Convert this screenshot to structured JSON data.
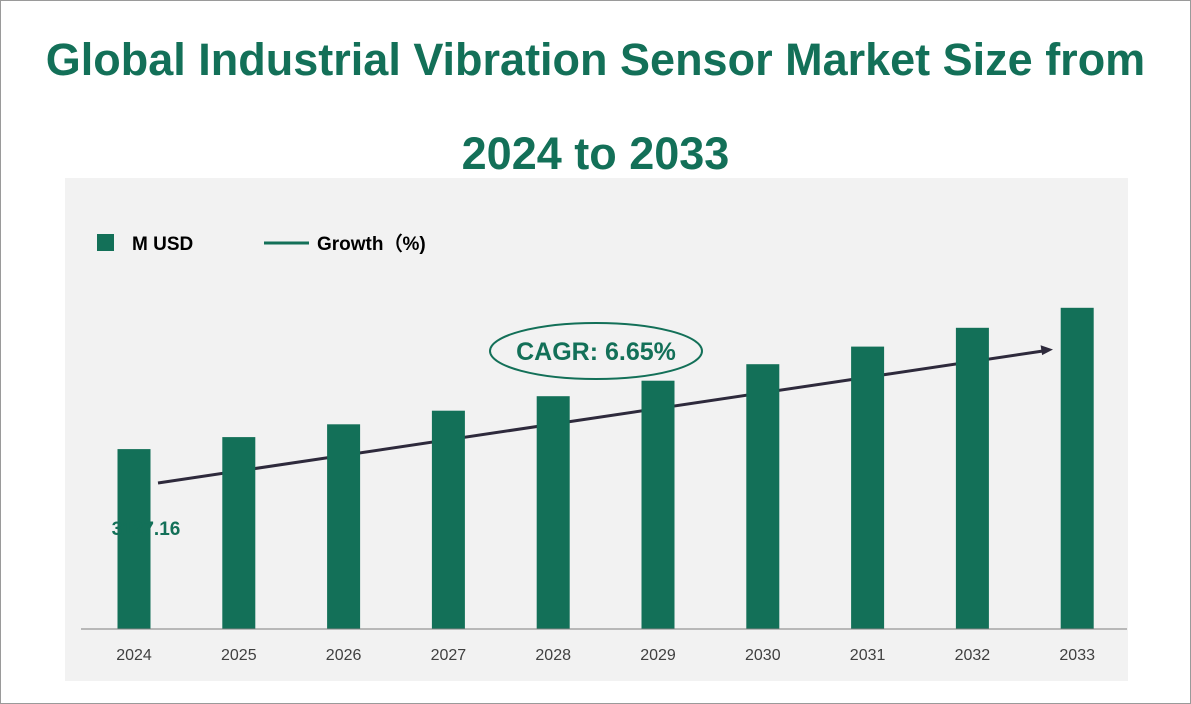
{
  "title_line1": "Global Industrial Vibration Sensor Market Size from",
  "title_line2": "2024 to 2033",
  "colors": {
    "bar": "#137058",
    "title": "#137058",
    "arrow": "#2e2a3c",
    "panel_bg": "#f2f2f2",
    "axis_text": "#404040"
  },
  "legend": {
    "bar_label": "M USD",
    "line_label": "Growth（%)"
  },
  "cagr_label": "CAGR: 6.65%",
  "first_value_label": "3127.16",
  "chart_data": {
    "type": "bar",
    "title": "Global Industrial Vibration Sensor Market Size from 2024 to 2033",
    "categories": [
      "2024",
      "2025",
      "2026",
      "2027",
      "2028",
      "2029",
      "2030",
      "2031",
      "2032",
      "2033"
    ],
    "series": [
      {
        "name": "M USD",
        "values": [
          3127.16,
          3335.1,
          3556.9,
          3793.5,
          4045.8,
          4314.8,
          4601.7,
          4907.8,
          5234.1,
          5582.2
        ]
      }
    ],
    "data_labels": {
      "2024": "3127.16"
    },
    "annotation": "CAGR: 6.65%",
    "ylim": [
      0,
      6500
    ],
    "grid": false,
    "legend_position": "top-left"
  }
}
